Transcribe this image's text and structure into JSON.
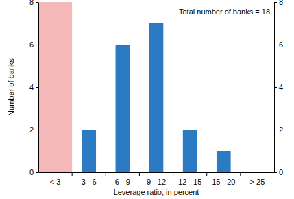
{
  "chart_data": {
    "type": "bar",
    "annotation": "Total number of banks = 18",
    "x_label": "Leverage ratio, in percent",
    "y_label": "Number of banks",
    "categories": [
      "< 3",
      "3 - 6",
      "6 - 9",
      "9 - 12",
      "12 - 15",
      "15 - 20",
      "> 25"
    ],
    "values": [
      0,
      2,
      6,
      7,
      2,
      1,
      0
    ],
    "color": "#2a7bc4",
    "ylim": [
      0,
      8
    ],
    "yticks": [
      0,
      2,
      4,
      6,
      8
    ],
    "grid": false
  }
}
